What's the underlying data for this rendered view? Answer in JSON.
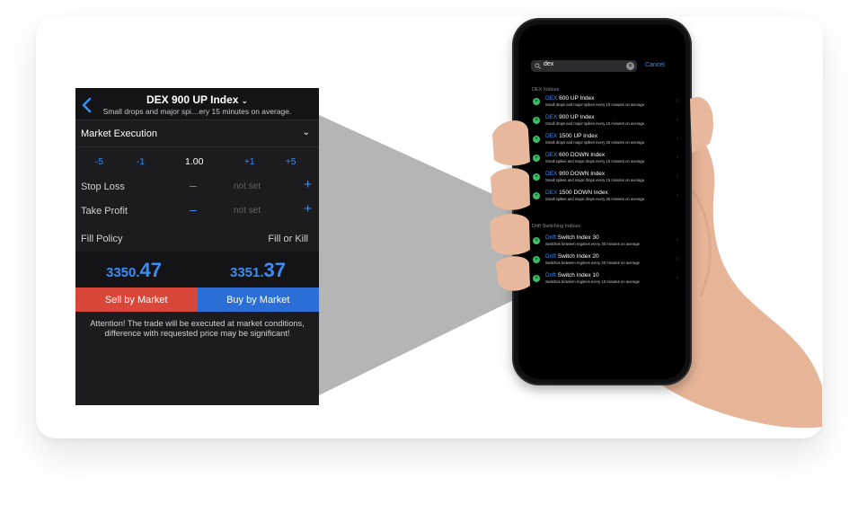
{
  "trade_panel": {
    "title": "DEX 900 UP Index",
    "title_chevron": "⌄",
    "subtitle": "Small drops and major spi…ery 15 minutes on average.",
    "execution_type": "Market Execution",
    "execution_chevron": "⌄",
    "volume_steps": {
      "minus5": "-5",
      "minus1": "-1",
      "value": "1.00",
      "plus1": "+1",
      "plus5": "+5"
    },
    "stop_loss": {
      "label": "Stop Loss",
      "minus": "–",
      "value": "not set",
      "plus": "+"
    },
    "take_profit": {
      "label": "Take Profit",
      "minus": "–",
      "value": "not set",
      "plus": "+"
    },
    "fill_policy": {
      "label": "Fill Policy",
      "value": "Fill or Kill"
    },
    "sell_price": {
      "main": "3350.",
      "big": "47"
    },
    "buy_price": {
      "main": "3351.",
      "big": "37"
    },
    "sell_label": "Sell by Market",
    "buy_label": "Buy by Market",
    "attention": "Attention! The trade will be executed at market conditions, difference with requested price may be significant!"
  },
  "phone": {
    "search_value": "dex",
    "cancel_label": "Cancel",
    "section_dex": "DEX Indices",
    "section_drift": "Drift Switching Indices",
    "dex_items": [
      {
        "hl": "DEX",
        "rest": " 600 UP Index",
        "desc": "Small drops and major spikes every 10 minutes on average."
      },
      {
        "hl": "DEX",
        "rest": " 900 UP Index",
        "desc": "Small drops and major spikes every 15 minutes on average."
      },
      {
        "hl": "DEX",
        "rest": " 1500 UP Index",
        "desc": "Small drops and major spikes every 25 minutes on average."
      },
      {
        "hl": "DEX",
        "rest": " 600 DOWN Index",
        "desc": "Small spikes and major drops every 10 minutes on average."
      },
      {
        "hl": "DEX",
        "rest": " 900 DOWN Index",
        "desc": "Small spikes and major drops every 15 minutes on average."
      },
      {
        "hl": "DEX",
        "rest": " 1500 DOWN Index",
        "desc": "Small spikes and major drops every 25 minutes on average."
      }
    ],
    "drift_items": [
      {
        "hl": "Drift",
        "rest": " Switch Index 30",
        "desc": "Switches between regimes every 30 minutes on average"
      },
      {
        "hl": "Drift",
        "rest": " Switch Index 20",
        "desc": "Switches between regimes every 20 minutes on average"
      },
      {
        "hl": "Drift",
        "rest": " Switch Index 10",
        "desc": "Switches between regimes every 10 minutes on average"
      }
    ]
  },
  "colors": {
    "accent": "#3a8df5",
    "sell": "#d8473a",
    "buy": "#2b6fd6",
    "dot": "#3bbf63",
    "skin": "#e8b89c"
  }
}
